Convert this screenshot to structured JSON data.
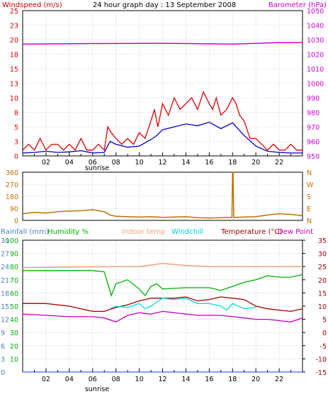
{
  "title": "24 hour graph day : 13 September 2008",
  "colors": {
    "wind": "#e00000",
    "wind_avg": "#0000c0",
    "barometer": "#d000d0",
    "direction": "#c07000",
    "humidity": "#00b000",
    "indoor": "#f0a080",
    "windchill": "#00e0e0",
    "temperature": "#a00000",
    "dewpoint": "#c000c0",
    "rainfall": "#4060ff",
    "grid": "#a0b0c8",
    "axis_blue": "#5080c0"
  },
  "chart_data": [
    {
      "type": "line",
      "id": "wind",
      "left_label": "Windspeed (m/s)",
      "right_label": "Barometer (hPa)",
      "left_ticks": [
        "0",
        "3",
        "5",
        "8",
        "10",
        "13",
        "15",
        "18",
        "20",
        "23",
        "25"
      ],
      "right_ticks": [
        "950",
        "960",
        "970",
        "980",
        "990",
        "1000",
        "1010",
        "1020",
        "1030",
        "1040",
        "1050"
      ],
      "ylim": [
        0,
        25
      ],
      "ylim_right": [
        950,
        1050
      ],
      "x_hours": [
        0,
        24
      ],
      "series": [
        {
          "key": "gust",
          "x": [
            0,
            0.5,
            1,
            1.5,
            2,
            2.5,
            3,
            3.5,
            4,
            4.5,
            5,
            5.5,
            6,
            6.5,
            7,
            7.3,
            7.6,
            8,
            8.5,
            9,
            9.5,
            10,
            10.5,
            11,
            11.3,
            11.6,
            12,
            12.5,
            13,
            13.5,
            14,
            14.5,
            15,
            15.5,
            16,
            16.3,
            16.6,
            17,
            17.5,
            18,
            18.3,
            18.6,
            19,
            19.5,
            20,
            20.5,
            21,
            21.5,
            22,
            22.5,
            23,
            23.5,
            24
          ],
          "values": [
            1,
            2,
            1,
            3,
            1,
            2,
            2,
            1,
            2,
            1,
            3,
            1,
            1,
            2,
            1,
            5,
            4,
            3,
            2,
            3,
            2,
            4,
            3,
            6,
            8,
            5,
            9,
            7,
            10,
            8,
            9,
            10,
            8,
            11,
            9,
            8,
            10,
            7,
            8,
            10,
            9,
            7,
            6,
            3,
            3,
            2,
            1,
            2,
            1,
            1,
            2,
            1,
            1
          ]
        },
        {
          "key": "average",
          "x": [
            0,
            1,
            2,
            3,
            4,
            5,
            6,
            7,
            7.5,
            8,
            9,
            10,
            11,
            11.5,
            12,
            13,
            14,
            15,
            16,
            17,
            18,
            19,
            20,
            21,
            22,
            23,
            24
          ],
          "values": [
            0.5,
            0.6,
            0.8,
            0.6,
            0.7,
            0.9,
            0.5,
            0.6,
            2.5,
            2.0,
            1.5,
            1.7,
            2.8,
            3.5,
            4.5,
            5.0,
            5.5,
            5.2,
            5.8,
            4.7,
            5.7,
            3.5,
            1.7,
            0.8,
            0.6,
            0.5,
            0.5
          ]
        },
        {
          "key": "barometer",
          "x": [
            0,
            6,
            12,
            18,
            22,
            24
          ],
          "values": [
            1027,
            1027.3,
            1027.5,
            1027,
            1028,
            1028
          ]
        }
      ]
    },
    {
      "type": "line",
      "id": "direction",
      "left_ticks": [
        "0",
        "90",
        "180",
        "270",
        "360"
      ],
      "right_ticks": [
        "N",
        "E",
        "S",
        "W",
        "N"
      ],
      "ylim": [
        0,
        360
      ],
      "x_hours": [
        0,
        24
      ],
      "series": [
        {
          "key": "direction",
          "x": [
            0,
            1,
            2,
            3,
            4,
            5,
            6,
            7,
            7.5,
            8,
            9,
            10,
            11,
            12,
            13,
            14,
            15,
            16,
            17,
            17.95,
            18,
            18.05,
            18.1,
            19,
            20,
            21,
            22,
            23,
            24
          ],
          "values": [
            50,
            60,
            55,
            65,
            70,
            72,
            80,
            65,
            40,
            30,
            28,
            25,
            28,
            22,
            25,
            28,
            20,
            18,
            20,
            22,
            360,
            360,
            22,
            25,
            28,
            40,
            50,
            45,
            35
          ]
        }
      ]
    },
    {
      "type": "line",
      "id": "temperature",
      "labels": [
        "Rainfall (mm)",
        "Humidity %",
        "Indoor temp",
        "Windchill",
        "Temperature (°C)",
        "Dew Point"
      ],
      "rain_ticks": [
        "0",
        "3",
        "6",
        "9",
        "12",
        "15",
        "18",
        "21",
        "24",
        "27",
        "30"
      ],
      "humidity_ticks": [
        "10",
        "20",
        "30",
        "40",
        "50",
        "60",
        "70",
        "80",
        "90",
        "100"
      ],
      "temp_ticks": [
        "-15",
        "-10",
        "-5",
        "0",
        "5",
        "10",
        "15",
        "20",
        "25",
        "30",
        "35"
      ],
      "ylim_temp": [
        -15,
        35
      ],
      "ylim_humidity": [
        0,
        100
      ],
      "ylim_rain": [
        0,
        30
      ],
      "x_hours": [
        0,
        24
      ],
      "series": [
        {
          "key": "humidity",
          "x": [
            0,
            3,
            6,
            7,
            7.6,
            8,
            9,
            10,
            10.5,
            11,
            11.5,
            12,
            14,
            16,
            17,
            18,
            19,
            20,
            21,
            22,
            23,
            24
          ],
          "values": [
            77,
            77,
            77,
            76,
            58,
            67,
            70,
            63,
            58,
            65,
            67,
            63,
            64,
            64,
            62,
            65,
            68,
            70,
            73,
            72,
            72,
            74
          ]
        },
        {
          "key": "indoor",
          "x": [
            0,
            4,
            8,
            10,
            12,
            14,
            16,
            18,
            20,
            22,
            24
          ],
          "values": [
            24.6,
            24.8,
            25,
            25,
            26.2,
            25.4,
            25,
            25,
            25,
            25,
            25
          ]
        },
        {
          "key": "windchill",
          "x": [
            7.5,
            8,
            9,
            10,
            10.5,
            11,
            12,
            13,
            14,
            15,
            16,
            17,
            17.5,
            18,
            19,
            20
          ],
          "values": [
            9,
            10,
            9.5,
            11,
            9,
            10,
            13,
            12.5,
            13,
            11,
            11,
            10,
            8.5,
            11,
            9,
            9.5
          ]
        },
        {
          "key": "temperature",
          "x": [
            0,
            2,
            4,
            5,
            6,
            7,
            8,
            9,
            10,
            11,
            12,
            13,
            14,
            15,
            16,
            17,
            18,
            19,
            20,
            21,
            22,
            23,
            24
          ],
          "values": [
            11,
            11,
            10,
            9,
            8,
            8,
            9.5,
            10.5,
            12,
            13,
            13,
            13,
            13.5,
            12,
            12.5,
            13.5,
            13,
            12.5,
            10,
            9,
            8.5,
            8,
            9
          ]
        },
        {
          "key": "dewpoint",
          "x": [
            0,
            2,
            4,
            6,
            7,
            8,
            9,
            10,
            11,
            12,
            13,
            14,
            15,
            16,
            17,
            18,
            19,
            20,
            21,
            22,
            23,
            24
          ],
          "values": [
            7,
            6.5,
            6,
            6,
            5.5,
            4,
            6.5,
            7.5,
            7,
            8,
            7.5,
            7,
            6.5,
            6.5,
            6.5,
            6,
            5.5,
            5,
            5,
            4.5,
            4,
            5.5
          ]
        },
        {
          "key": "rainfall",
          "x": [
            0,
            24
          ],
          "values": [
            0,
            0
          ]
        }
      ]
    }
  ],
  "x_tick_labels": [
    "02",
    "04",
    "06",
    "08",
    "10",
    "12",
    "14",
    "16",
    "18",
    "20",
    "22"
  ],
  "x_special_label": "sunrise"
}
